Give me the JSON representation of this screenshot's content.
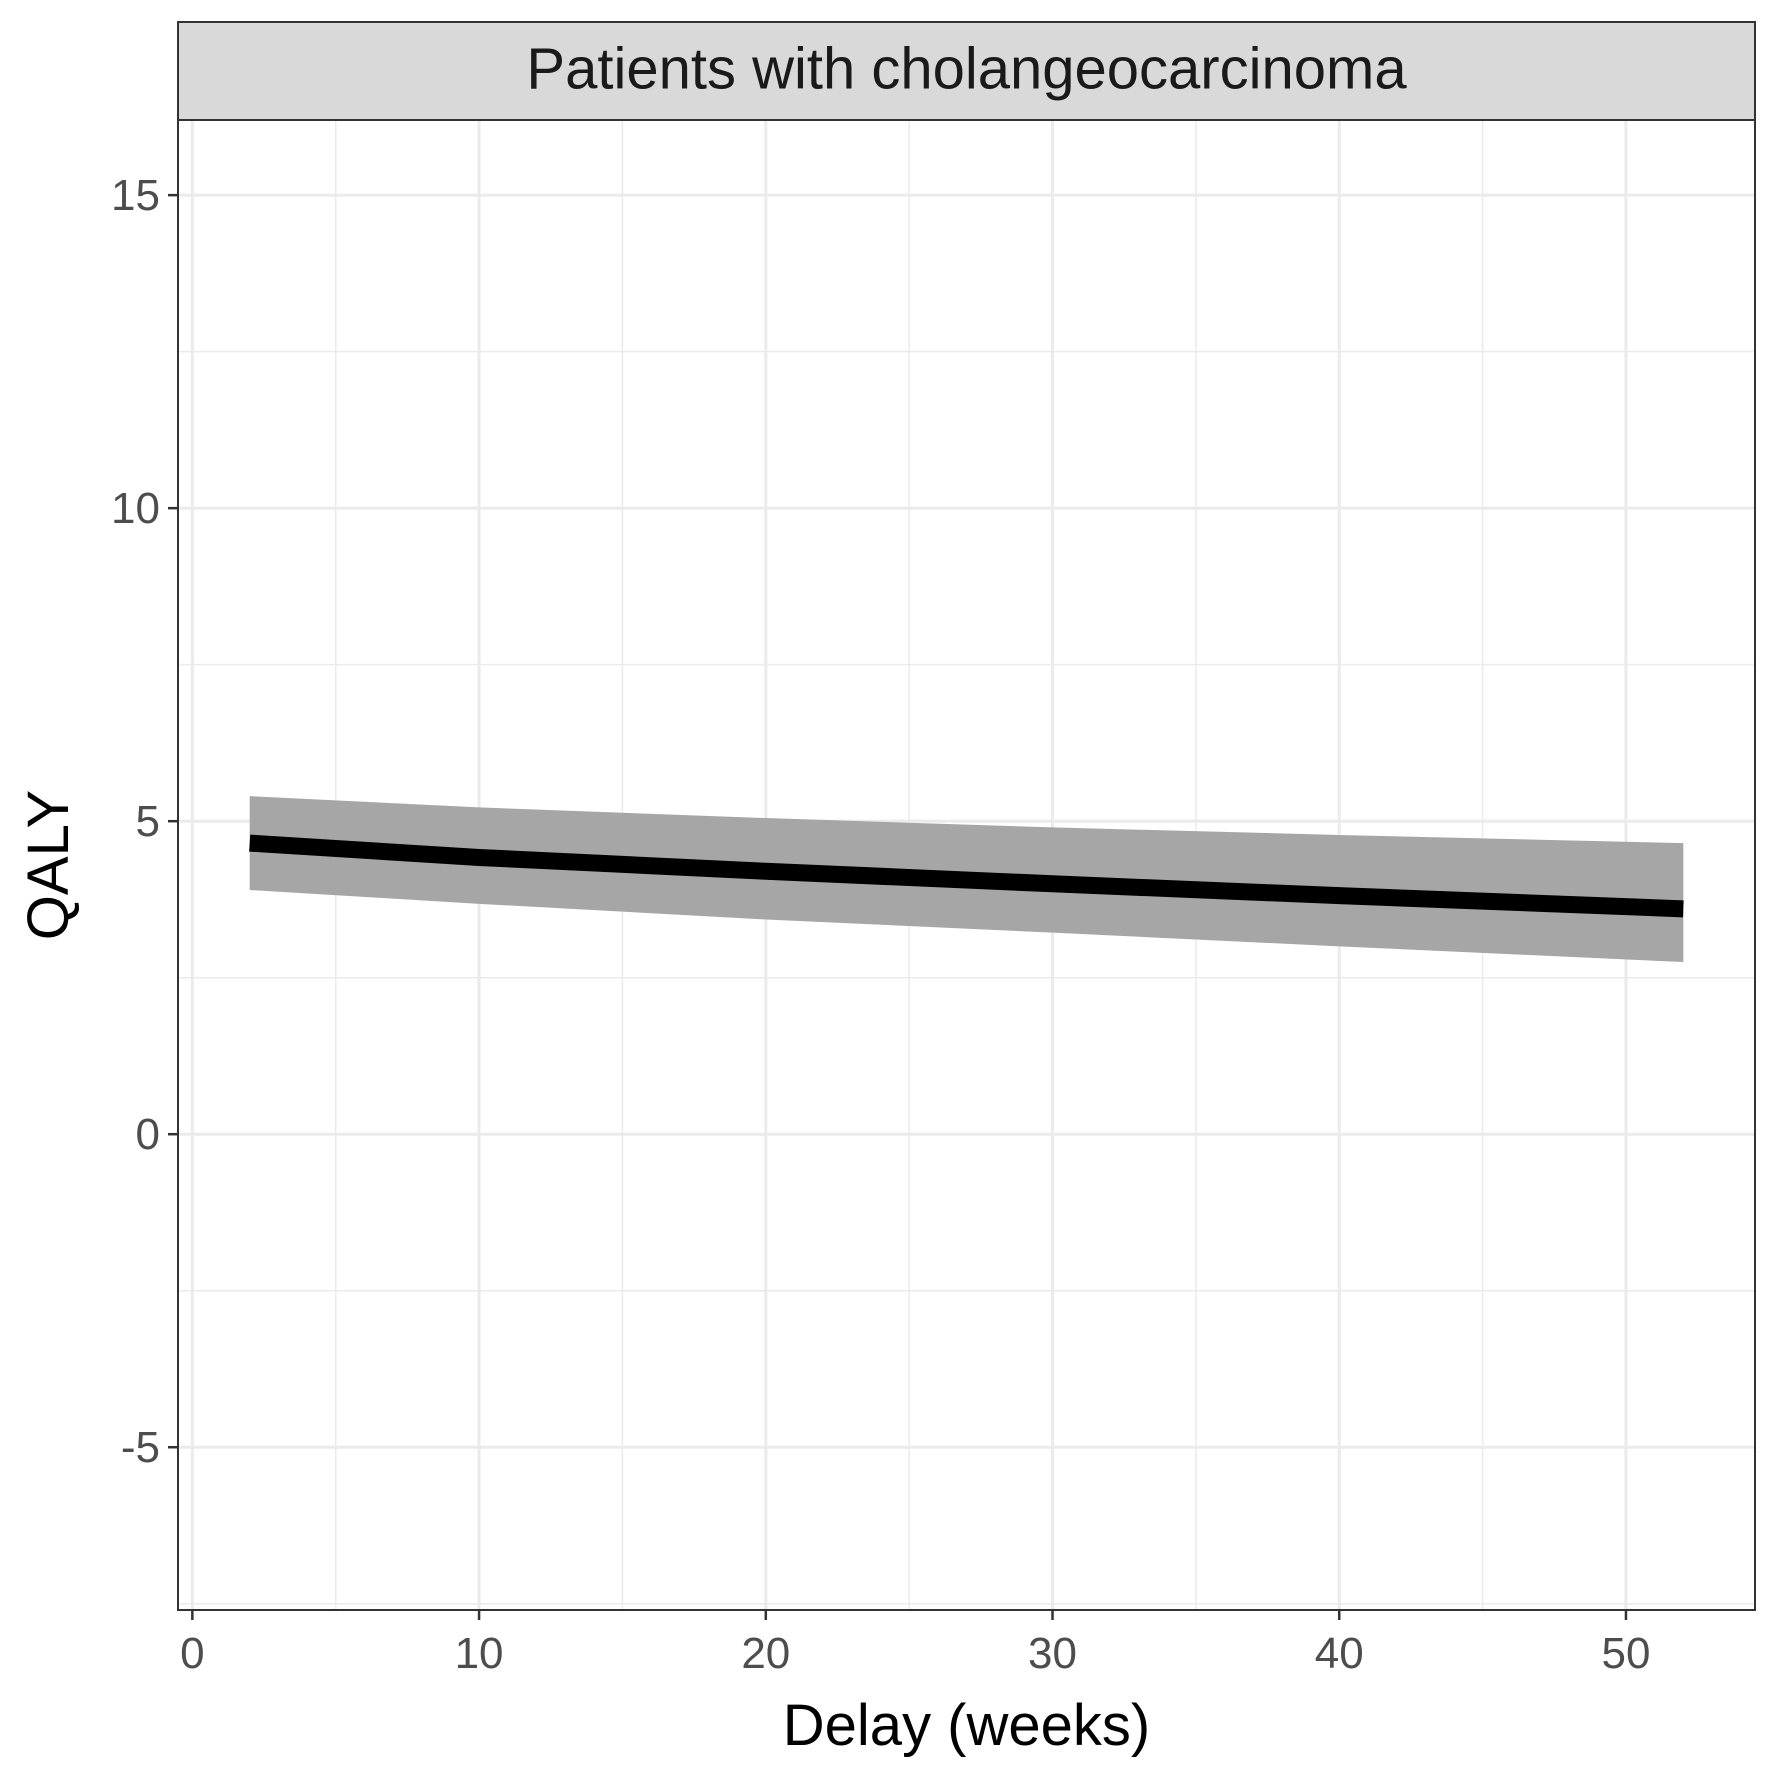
{
  "chart_data": {
    "type": "line",
    "facet_title": "Patients with cholangeocarcinoma",
    "xlabel": "Delay (weeks)",
    "ylabel": "QALY",
    "xlim": [
      -0.5,
      54.5
    ],
    "ylim": [
      -7.6,
      16.2
    ],
    "x_ticks": [
      0,
      10,
      20,
      30,
      40,
      50
    ],
    "y_ticks": [
      -5,
      0,
      5,
      10,
      15
    ],
    "grid": true,
    "series": [
      {
        "x": [
          2,
          10,
          20,
          30,
          40,
          52
        ],
        "y": [
          4.65,
          4.42,
          4.2,
          4.0,
          3.81,
          3.6
        ],
        "band_upper": [
          5.4,
          5.22,
          5.05,
          4.9,
          4.78,
          4.65
        ],
        "band_lower": [
          3.9,
          3.68,
          3.43,
          3.22,
          3.0,
          2.75
        ]
      }
    ],
    "colors": {
      "line": "#000000",
      "band": "#a6a6a6",
      "grid": "#ebebeb",
      "strip_fill": "#d9d9d9",
      "panel_border": "#333333"
    }
  }
}
